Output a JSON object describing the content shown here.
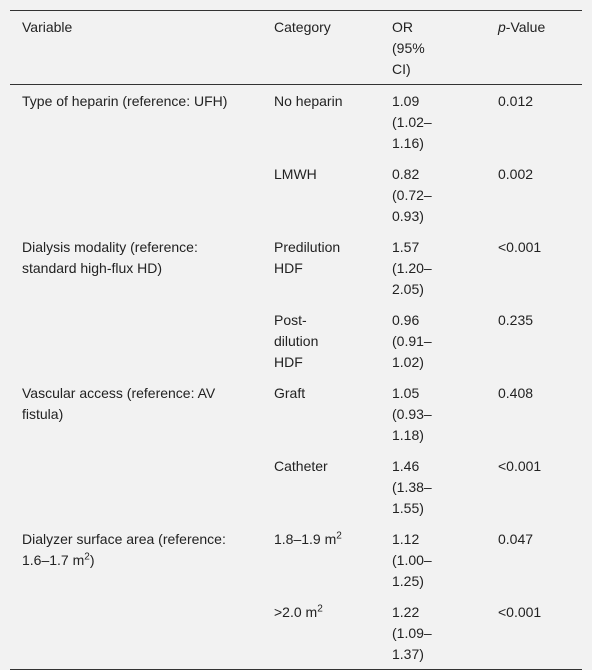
{
  "table": {
    "header": [
      {
        "text": "Variable"
      },
      {
        "text": "Category"
      },
      {
        "text": "OR (95% CI)"
      },
      {
        "italic": "p",
        "text": "-Value"
      }
    ],
    "rows": [
      {
        "variable": "Type of heparin (reference: UFH)",
        "entries": [
          {
            "category": {
              "text": "No heparin"
            },
            "or": "1.09 (1.02–1.16)",
            "p": "0.012"
          },
          {
            "category": {
              "text": "LMWH"
            },
            "or": "0.82 (0.72–0.93)",
            "p": "0.002"
          }
        ]
      },
      {
        "variable": "Dialysis modality (reference: standard high-flux HD)",
        "entries": [
          {
            "category": {
              "text": "Predilution HDF"
            },
            "or": "1.57 (1.20–2.05)",
            "p": "<0.001"
          },
          {
            "category": {
              "text": "Post-dilution HDF"
            },
            "or": "0.96 (0.91–1.02)",
            "p": "0.235"
          }
        ]
      },
      {
        "variable": "Vascular access (reference: AV fistula)",
        "entries": [
          {
            "category": {
              "text": "Graft"
            },
            "or": "1.05 (0.93–1.18)",
            "p": "0.408"
          },
          {
            "category": {
              "text": "Catheter"
            },
            "or": "1.46 (1.38–1.55)",
            "p": "<0.001"
          }
        ]
      },
      {
        "variable": {
          "text": "Dialyzer surface area (reference: 1.6–1.7 m",
          "sup": "2",
          "after": ")"
        },
        "entries": [
          {
            "category": {
              "text": "1.8–1.9 m",
              "sup": "2"
            },
            "or": "1.12 (1.00–1.25)",
            "p": "0.047"
          },
          {
            "category": {
              "text": ">2.0 m",
              "sup": "2"
            },
            "or": "1.22 (1.09–1.37)",
            "p": "<0.001"
          }
        ]
      }
    ]
  }
}
